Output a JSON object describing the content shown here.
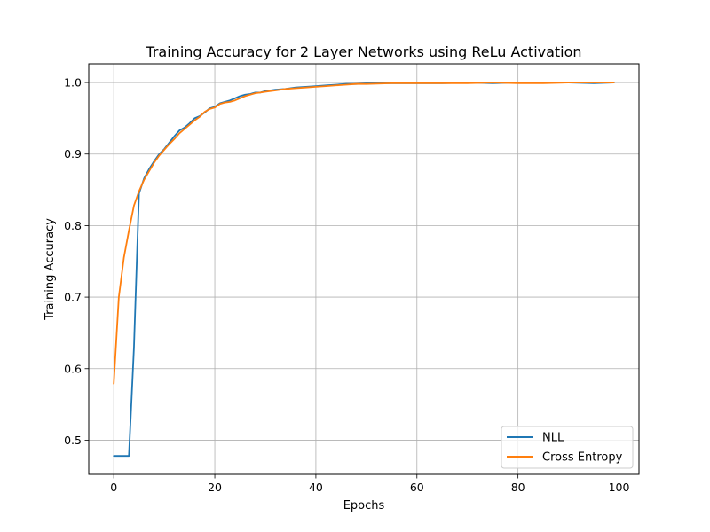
{
  "chart_data": {
    "type": "line",
    "title": "Training Accuracy for 2 Layer Networks using ReLu Activation",
    "xlabel": "Epochs",
    "ylabel": "Training Accuracy",
    "xlim": [
      -4.95,
      103.95
    ],
    "ylim": [
      0.4522,
      1.0261
    ],
    "xticks": [
      0,
      20,
      40,
      60,
      80,
      100
    ],
    "yticks": [
      0.5,
      0.6,
      0.7,
      0.8,
      0.9,
      1.0
    ],
    "xtick_labels": [
      "0",
      "20",
      "40",
      "60",
      "80",
      "100"
    ],
    "ytick_labels": [
      "0.5",
      "0.6",
      "0.7",
      "0.8",
      "0.9",
      "1.0"
    ],
    "grid": true,
    "legend_position": "lower-right",
    "series": [
      {
        "name": "NLL",
        "color": "#1f77b4",
        "x": [
          0,
          1,
          2,
          3,
          4,
          5,
          6,
          7,
          8,
          9,
          10,
          11,
          12,
          13,
          14,
          15,
          16,
          17,
          18,
          19,
          20,
          21,
          22,
          23,
          24,
          25,
          26,
          27,
          28,
          29,
          30,
          32,
          34,
          36,
          38,
          40,
          42,
          44,
          46,
          48,
          50,
          55,
          60,
          65,
          70,
          75,
          80,
          85,
          90,
          95,
          99
        ],
        "y": [
          0.478,
          0.478,
          0.478,
          0.478,
          0.63,
          0.845,
          0.866,
          0.879,
          0.89,
          0.9,
          0.907,
          0.916,
          0.925,
          0.933,
          0.937,
          0.943,
          0.95,
          0.953,
          0.958,
          0.964,
          0.966,
          0.971,
          0.973,
          0.975,
          0.978,
          0.981,
          0.983,
          0.984,
          0.986,
          0.986,
          0.988,
          0.99,
          0.991,
          0.993,
          0.994,
          0.995,
          0.996,
          0.997,
          0.998,
          0.998,
          0.999,
          0.999,
          0.999,
          0.999,
          1.0,
          0.999,
          1.0,
          1.0,
          1.0,
          0.999,
          1.0
        ]
      },
      {
        "name": "Cross Entropy",
        "color": "#ff7f0e",
        "x": [
          0,
          1,
          2,
          3,
          4,
          5,
          6,
          7,
          8,
          9,
          10,
          11,
          12,
          13,
          14,
          15,
          16,
          17,
          18,
          19,
          20,
          21,
          22,
          23,
          24,
          25,
          26,
          27,
          28,
          29,
          30,
          32,
          34,
          36,
          38,
          40,
          42,
          44,
          46,
          48,
          50,
          55,
          60,
          65,
          70,
          75,
          80,
          85,
          90,
          95,
          99
        ],
        "y": [
          0.579,
          0.7,
          0.755,
          0.793,
          0.828,
          0.848,
          0.864,
          0.876,
          0.888,
          0.898,
          0.906,
          0.914,
          0.921,
          0.929,
          0.935,
          0.941,
          0.947,
          0.952,
          0.959,
          0.963,
          0.965,
          0.97,
          0.972,
          0.973,
          0.975,
          0.978,
          0.981,
          0.983,
          0.985,
          0.986,
          0.987,
          0.989,
          0.991,
          0.992,
          0.993,
          0.994,
          0.995,
          0.996,
          0.997,
          0.998,
          0.998,
          0.999,
          0.999,
          0.999,
          0.999,
          1.0,
          0.999,
          0.999,
          1.0,
          1.0,
          1.0
        ]
      }
    ]
  }
}
